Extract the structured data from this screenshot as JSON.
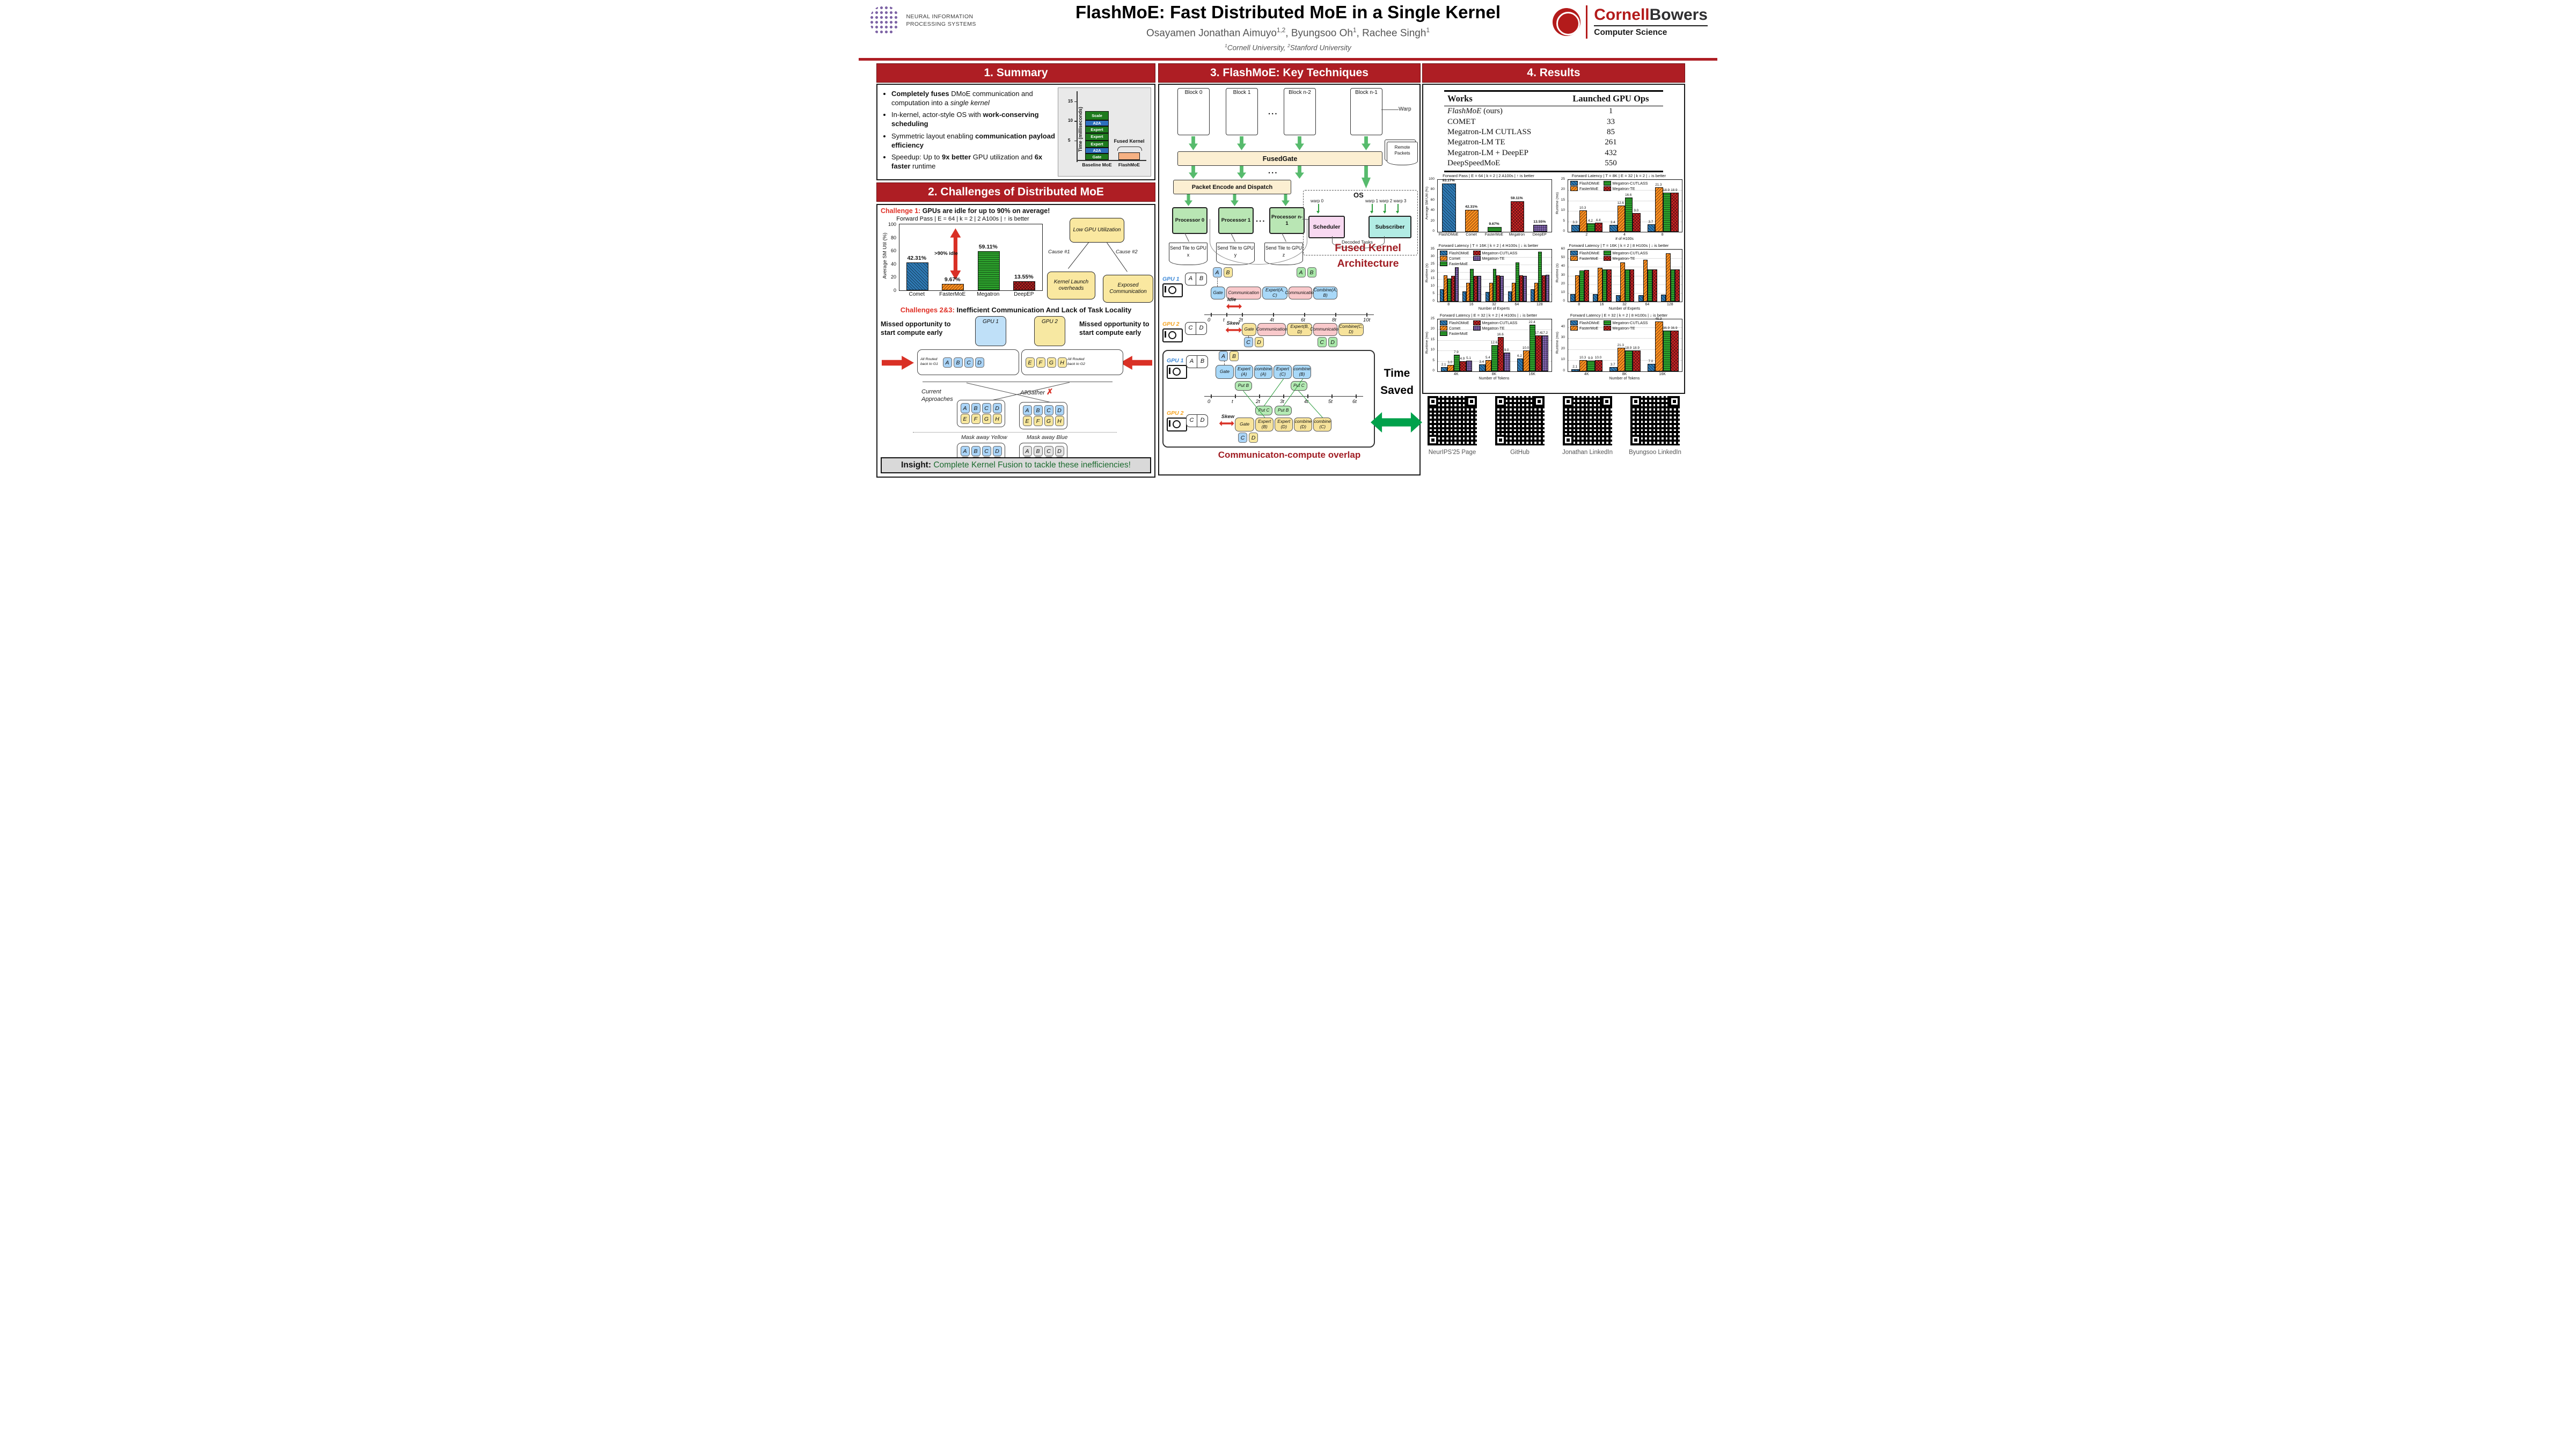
{
  "header": {
    "title": "FlashMoE: Fast Distributed MoE in a Single Kernel",
    "authors": [
      {
        "name": "Osayamen Jonathan Aimuyo",
        "sup": "1,2",
        "sep": ", "
      },
      {
        "name": "Byungsoo Oh",
        "sup": "1",
        "sep": ", "
      },
      {
        "name": "Rachee Singh",
        "sup": "1",
        "sep": ""
      }
    ],
    "affiliations": [
      {
        "sup": "1",
        "text": "Cornell University, "
      },
      {
        "sup": "2",
        "text": "Stanford University"
      }
    ],
    "neurips_lines": [
      "NEURAL INFORMATION",
      "PROCESSING SYSTEMS"
    ],
    "cornell": {
      "red": "Cornell",
      "black": "Bowers",
      "sub": "Computer Science"
    }
  },
  "sections": {
    "s1": "1. Summary",
    "s2": "2. Challenges of Distributed MoE",
    "s3": "3. FlashMoE: Key Techniques",
    "s4": "4. Results"
  },
  "summary": {
    "bullets": [
      [
        {
          "t": "Completely fuses",
          "b": 1
        },
        {
          "t": " DMoE communication and computation into a "
        },
        {
          "t": "single kernel",
          "i": 1
        }
      ],
      [
        {
          "t": "In-kernel, actor-style OS with "
        },
        {
          "t": "work-conserving scheduling",
          "b": 1
        }
      ],
      [
        {
          "t": "Symmetric layout enabling "
        },
        {
          "t": "communication payload efficiency",
          "b": 1
        }
      ],
      [
        {
          "t": "Speedup: Up to "
        },
        {
          "t": "9x better",
          "b": 1
        },
        {
          "t": " GPU utilization and "
        },
        {
          "t": "6x faster",
          "b": 1
        },
        {
          "t": " runtime"
        }
      ]
    ]
  },
  "challenges": {
    "ch1_red": "Challenge 1:",
    "ch1_black": " GPUs are idle for up to 90% on average!",
    "causes": {
      "low": "Low GPU Utilization",
      "c1": "Cause #1",
      "c2": "Cause #2",
      "kernel": "Kernel Launch overheads",
      "exposed": "Exposed Communication"
    },
    "ch23_red": "Challenges 2&3: ",
    "ch23_black": "Inefficient Communication And Lack of Task Locality",
    "missed_left": "Missed opportunity to start compute early",
    "missed_right": "Missed opportunity to start compute early",
    "gpu1": "GPU 1",
    "gpu2": "GPU 2",
    "routed1": "All Routed back to G1",
    "routed2": "All Routed back to G2",
    "tokens_blue": [
      "A",
      "B",
      "C",
      "D"
    ],
    "tokens_yellow": [
      "E",
      "F",
      "G",
      "H"
    ],
    "current": "Current Approaches",
    "allgather": "AllGather",
    "cross": "✗",
    "mask_yellow": "Mask away Yellow",
    "mask_blue": "Mask away Blue",
    "insight_label": "Insight: ",
    "insight_text": "Complete Kernel Fusion to tackle these inefficiencies!"
  },
  "tech": {
    "blocks": [
      "Block 0",
      "Block 1",
      "Block n-2",
      "Block n-1"
    ],
    "dots": "...",
    "warp_label": "Warp",
    "fusedgate": "FusedGate",
    "packet": "Packet Encode and Dispatch",
    "os": "OS",
    "warp0": "warp 0",
    "warps123": "warp 1 warp 2 warp 3",
    "scheduler": "Scheduler",
    "subscriber": "Subscriber",
    "decoded": "Decoded Tasks",
    "remote": "Remote Packets",
    "processors": [
      "Processor 0",
      "Processor 1",
      "Processor n-1"
    ],
    "send_tiles": [
      "Send Tile to GPU x",
      "Send Tile to GPU y",
      "Send Tile to GPU z"
    ],
    "arch_caption": "Fused Kernel Architecture",
    "time_saved": "Time Saved",
    "overlap_caption": "Communicaton-compute overlap"
  },
  "timelines": {
    "t1": {
      "gpu1": "GPU 1",
      "gpu2": "GPU 2",
      "idle": "Idle",
      "skew": "Skew",
      "xmax": 10,
      "axis": [
        {
          "l": "0",
          "x": 0
        },
        {
          "l": "t",
          "x": 1
        },
        {
          "l": "2t",
          "x": 2
        },
        {
          "l": "4t",
          "x": 4
        },
        {
          "l": "6t",
          "x": 6
        },
        {
          "l": "8t",
          "x": 8
        },
        {
          "l": "10t",
          "x": 10
        }
      ],
      "g1_tokens": [
        "A",
        "B"
      ],
      "g2_tokens": [
        "C",
        "D"
      ],
      "g1_chips": [
        {
          "t": "A",
          "c": "blue"
        },
        {
          "t": "B",
          "c": "yellow"
        }
      ],
      "g1_out": [
        {
          "t": "A",
          "c": "green"
        },
        {
          "t": "B",
          "c": "green"
        }
      ],
      "g2_chips": [
        {
          "t": "C",
          "c": "blue"
        },
        {
          "t": "D",
          "c": "yellow"
        }
      ],
      "g2_out": [
        {
          "t": "C",
          "c": "green"
        },
        {
          "t": "D",
          "c": "green"
        }
      ],
      "g1_seq": [
        {
          "l": "Gate",
          "c": "blue",
          "x": 0,
          "w": 1
        },
        {
          "l": "Communication",
          "c": "pink",
          "x": 1,
          "w": 2.3
        },
        {
          "l": "Expert(A, C)",
          "c": "blue",
          "x": 3.3,
          "w": 1.7
        },
        {
          "l": "Communication",
          "c": "pink",
          "x": 5,
          "w": 1.6
        },
        {
          "l": "Combine(A, B)",
          "c": "blue",
          "x": 6.6,
          "w": 1.6
        }
      ],
      "g2_seq": [
        {
          "l": "Gate",
          "c": "yellow",
          "x": 2,
          "w": 1
        },
        {
          "l": "Communication",
          "c": "pink",
          "x": 3,
          "w": 1.9
        },
        {
          "l": "Expert(B, D)",
          "c": "yellow",
          "x": 4.9,
          "w": 1.7
        },
        {
          "l": "Communication",
          "c": "pink",
          "x": 6.6,
          "w": 1.6
        },
        {
          "l": "Combine(C, D)",
          "c": "yellow",
          "x": 8.2,
          "w": 1.7
        }
      ]
    },
    "t2": {
      "gpu1": "GPU 1",
      "gpu2": "GPU 2",
      "skew": "Skew",
      "xmax": 6,
      "axis": [
        {
          "l": "0",
          "x": 0
        },
        {
          "l": "t",
          "x": 1
        },
        {
          "l": "2t",
          "x": 2
        },
        {
          "l": "3t",
          "x": 3
        },
        {
          "l": "4t",
          "x": 4
        },
        {
          "l": "5t",
          "x": 5
        },
        {
          "l": "6t",
          "x": 6
        }
      ],
      "g1_tokens": [
        "A",
        "B"
      ],
      "g2_tokens": [
        "C",
        "D"
      ],
      "g1_chips": [
        {
          "t": "A",
          "c": "blue"
        },
        {
          "t": "B",
          "c": "yellow"
        }
      ],
      "g2_chips": [
        {
          "t": "C",
          "c": "blue"
        },
        {
          "t": "D",
          "c": "yellow"
        }
      ],
      "g1_seq": [
        {
          "l": "Gate",
          "c": "blue",
          "x": 0.2,
          "w": 0.8
        },
        {
          "l": "Expert (A)",
          "c": "blue",
          "x": 1.0,
          "w": 0.8
        },
        {
          "l": "combine (A)",
          "c": "blue",
          "x": 1.8,
          "w": 0.8
        },
        {
          "l": "Expert (C)",
          "c": "blue",
          "x": 2.6,
          "w": 0.8
        },
        {
          "l": "combine (B)",
          "c": "blue",
          "x": 3.4,
          "w": 0.8
        }
      ],
      "g1_puts": [
        {
          "l": "Put B",
          "x": 1.0,
          "w": 0.75
        },
        {
          "l": "Put C",
          "x": 3.3,
          "w": 0.75
        }
      ],
      "g2_puts": [
        {
          "l": "Put C",
          "x": 1.85,
          "w": 0.75
        },
        {
          "l": "Put B",
          "x": 2.65,
          "w": 0.75
        }
      ],
      "g2_seq": [
        {
          "l": "Gate",
          "c": "yellow",
          "x": 1.0,
          "w": 0.85
        },
        {
          "l": "Expert (B)",
          "c": "yellow",
          "x": 1.85,
          "w": 0.8
        },
        {
          "l": "Expert (D)",
          "c": "yellow",
          "x": 2.65,
          "w": 0.8
        },
        {
          "l": "combine (D)",
          "c": "yellow",
          "x": 3.45,
          "w": 0.8
        },
        {
          "l": "combine (C)",
          "c": "yellow",
          "x": 4.25,
          "w": 0.8
        }
      ]
    }
  },
  "results": {
    "table": {
      "headers": [
        "Works",
        "Launched GPU Ops"
      ],
      "rows": [
        {
          "work_i": "FlashMoE",
          "work": " (ours)",
          "ops": "1"
        },
        {
          "work_i": "",
          "work": "COMET",
          "ops": "33"
        },
        {
          "work_i": "",
          "work": "Megatron-LM CUTLASS",
          "ops": "85"
        },
        {
          "work_i": "",
          "work": "Megatron-LM TE",
          "ops": "261"
        },
        {
          "work_i": "",
          "work": "Megatron-LM + DeepEP",
          "ops": "432"
        },
        {
          "work_i": "",
          "work": "DeepSpeedMoE",
          "ops": "550"
        }
      ]
    }
  },
  "qr": {
    "items": [
      {
        "label": "NeurIPS'25 Page"
      },
      {
        "label": "GitHub"
      },
      {
        "label": "Jonathan LinkedIn"
      },
      {
        "label": "Byungsoo LinkedIn"
      }
    ]
  },
  "chart_data": [
    {
      "id": "summary_inset",
      "type": "stacked-bar",
      "ylabel": "Time (milliseconds)",
      "yticks": [
        5,
        10,
        15
      ],
      "ymax": 17,
      "fused_label": "Fused Kernel",
      "bars": [
        {
          "label": "Baseline MoE",
          "segments": [
            {
              "name": "Gate",
              "h": 1.7,
              "color": "#1e7a1e"
            },
            {
              "name": "A2A",
              "h": 1.5,
              "color": "#2e6fbd"
            },
            {
              "name": "Expert",
              "h": 1.8,
              "color": "#1e7a1e"
            },
            {
              "name": "Expert",
              "h": 1.8,
              "color": "#1e7a1e"
            },
            {
              "name": "Expert",
              "h": 1.8,
              "color": "#1e7a1e"
            },
            {
              "name": "A2A",
              "h": 1.5,
              "color": "#2e6fbd"
            },
            {
              "name": "Scale",
              "h": 2.4,
              "color": "#1e7a1e"
            }
          ]
        },
        {
          "label": "FlashMoE",
          "segments": [
            {
              "name": "",
              "h": 1.9,
              "color": "#f6b183"
            }
          ]
        }
      ]
    },
    {
      "id": "challenge_util",
      "type": "bar",
      "title": "Forward Pass | E = 64 | k = 2 | 2 A100s |  ↑  is better",
      "ylabel": "Average SM Util (%)",
      "ymax": 100,
      "yticks": [
        0,
        20,
        40,
        60,
        80,
        100
      ],
      "categories": [
        "Comet",
        "FasterMoE",
        "Megatron",
        "DeepEP"
      ],
      "values": [
        42.31,
        9.67,
        59.11,
        13.55
      ],
      "labels": [
        "42.31%",
        "9.67%",
        "59.11%",
        "13.55%"
      ],
      "colors": [
        "#2f7bb6",
        "#ff8f1f",
        "#2ca02c",
        "#b22222"
      ],
      "hatches": [
        "d",
        "b",
        "h",
        "x"
      ],
      "annotation": ">90% idle"
    },
    {
      "id": "results_util",
      "type": "bar",
      "title": "Forward Pass | E = 64 | k = 2 | 2 A100s |  ↑  is better",
      "ylabel": "Average SM Util (%)",
      "ymax": 100,
      "yticks": [
        0,
        20,
        40,
        60,
        80,
        100
      ],
      "categories": [
        "FlashDMoE",
        "Comet",
        "FasterMoE",
        "Megatron",
        "DeepEP"
      ],
      "values": [
        93.17,
        42.31,
        9.67,
        59.11,
        13.55
      ],
      "labels": [
        "93.17%",
        "42.31%",
        "9.67%",
        "59.11%",
        "13.55%"
      ],
      "colors": [
        "#2f7bb6",
        "#ff8f1f",
        "#2ca02c",
        "#cc2526",
        "#8f6fc0"
      ],
      "hatches": [
        "d",
        "b",
        "h",
        "x",
        "g"
      ]
    },
    {
      "id": "lat_gpus",
      "type": "grouped-bar",
      "title": "Forward Latency | T = 8K | E = 32 | k = 2 |  ↓  is better",
      "xlabel": "# of H100s",
      "ylabel": "Runtime (ms)",
      "ymax": 25,
      "yticks": [
        0,
        5,
        10,
        15,
        20,
        25
      ],
      "grid": true,
      "show_values": true,
      "categories": [
        "2",
        "4",
        "8"
      ],
      "series": [
        {
          "name": "FlashDMoE",
          "color": "#2f7bb6",
          "hatch": "d",
          "values": [
            3.3,
            3.4,
            3.7
          ]
        },
        {
          "name": "FasterMoE",
          "color": "#ff8f1f",
          "hatch": "b",
          "values": [
            10.3,
            12.6,
            21.3
          ]
        },
        {
          "name": "Megatron-CUTLASS",
          "color": "#2ca02c",
          "hatch": "h",
          "values": [
            4.2,
            16.6,
            18.9
          ]
        },
        {
          "name": "Megatron-TE",
          "color": "#cc2526",
          "hatch": "x",
          "values": [
            4.4,
            9.0,
            18.9
          ]
        }
      ]
    },
    {
      "id": "lat_experts_4h",
      "type": "grouped-bar",
      "title": "Forward Latency | T = 16K | k = 2 | 4 H100s |  ↓  is better",
      "xlabel": "Number of Experts",
      "ylabel": "Runtime (s)",
      "ymax": 35,
      "yticks": [
        0,
        5,
        10,
        15,
        20,
        25,
        30,
        35
      ],
      "grid": true,
      "show_values": false,
      "categories": [
        "8",
        "16",
        "32",
        "64",
        "128"
      ],
      "series": [
        {
          "name": "FlashDMoE",
          "color": "#2f7bb6",
          "hatch": "d",
          "values": [
            8.2,
            6.9,
            6.4,
            6.9,
            8.2
          ]
        },
        {
          "name": "Comet",
          "color": "#ff8f1f",
          "hatch": "b",
          "values": [
            17.8,
            12.6,
            12.6,
            12.7,
            12.8
          ]
        },
        {
          "name": "FasterMoE",
          "color": "#2ca02c",
          "hatch": "h",
          "values": [
            15.6,
            21.9,
            22.1,
            26.4,
            33.4
          ]
        },
        {
          "name": "Megatron-CUTLASS",
          "color": "#cc2526",
          "hatch": "x",
          "values": [
            17.4,
            17.4,
            17.6,
            17.7,
            17.7
          ]
        },
        {
          "name": "Megatron-TE",
          "color": "#8f6fc0",
          "hatch": "g",
          "values": [
            23.0,
            17.3,
            17.5,
            17.5,
            17.9
          ]
        }
      ]
    },
    {
      "id": "lat_experts_8h",
      "type": "grouped-bar",
      "title": "Forward Latency | T = 16K | k = 2 | 8 H100s |  ↓  is better",
      "xlabel": "Number of Experts",
      "ylabel": "Runtime (s)",
      "ymax": 60,
      "yticks": [
        0,
        10,
        20,
        30,
        40,
        50,
        60
      ],
      "grid": true,
      "show_values": false,
      "categories": [
        "8",
        "16",
        "32",
        "64",
        "128"
      ],
      "series": [
        {
          "name": "FlashDMoE",
          "color": "#2f7bb6",
          "hatch": "d",
          "values": [
            8.6,
            8.6,
            7.2,
            7.2,
            8.3
          ]
        },
        {
          "name": "FasterMoE",
          "color": "#ff8f1f",
          "hatch": "b",
          "values": [
            30.6,
            38.9,
            44.9,
            48.3,
            55.4
          ]
        },
        {
          "name": "Megatron-CUTLASS",
          "color": "#2ca02c",
          "hatch": "h",
          "values": [
            36.1,
            37.0,
            36.9,
            37.2,
            37.1
          ]
        },
        {
          "name": "Megatron-TE",
          "color": "#cc2526",
          "hatch": "x",
          "values": [
            36.6,
            36.9,
            36.9,
            36.9,
            37.1
          ]
        }
      ]
    },
    {
      "id": "lat_tokens_4h",
      "type": "grouped-bar",
      "title": "Forward Latency | E = 32 | k = 2 | 4 H100s |  ↓  is better",
      "xlabel": "Number of Tokens",
      "ylabel": "Runtime (ms)",
      "ymax": 25,
      "yticks": [
        0,
        5,
        10,
        15,
        20,
        25
      ],
      "grid": true,
      "show_values": true,
      "categories": [
        "4K",
        "8K",
        "16K"
      ],
      "series": [
        {
          "name": "FlashDMoE",
          "color": "#2f7bb6",
          "hatch": "d",
          "values": [
            2.1,
            3.4,
            6.2
          ]
        },
        {
          "name": "Comet",
          "color": "#ff8f1f",
          "hatch": "b",
          "values": [
            3.0,
            5.4,
            10.0
          ]
        },
        {
          "name": "FasterMoE",
          "color": "#2ca02c",
          "hatch": "h",
          "values": [
            7.9,
            12.6,
            22.4
          ]
        },
        {
          "name": "Megatron-CUTLASS",
          "color": "#cc2526",
          "hatch": "x",
          "values": [
            4.9,
            16.6,
            17.4
          ]
        },
        {
          "name": "Megatron-TE",
          "color": "#8f6fc0",
          "hatch": "g",
          "values": [
            5.1,
            9.0,
            17.2
          ]
        }
      ]
    },
    {
      "id": "lat_tokens_8h",
      "type": "grouped-bar",
      "title": "Forward Latency | E = 32 | k = 2 | 8 H100s |  ↓  is better",
      "xlabel": "Number of Tokens",
      "ylabel": "Runtime (ms)",
      "ymax": 47,
      "yticks": [
        0,
        10,
        20,
        30,
        40
      ],
      "grid": true,
      "show_values": true,
      "categories": [
        "4K",
        "8K",
        "16K"
      ],
      "series": [
        {
          "name": "FlashDMoE",
          "color": "#2f7bb6",
          "hatch": "d",
          "values": [
            2.1,
            3.7,
            7.0
          ]
        },
        {
          "name": "FasterMoE",
          "color": "#ff8f1f",
          "hatch": "b",
          "values": [
            10.3,
            21.3,
            45.3
          ]
        },
        {
          "name": "Megatron-CUTLASS",
          "color": "#2ca02c",
          "hatch": "h",
          "values": [
            9.9,
            18.9,
            36.9
          ]
        },
        {
          "name": "Megatron-TE",
          "color": "#cc2526",
          "hatch": "x",
          "values": [
            10.0,
            18.9,
            36.9
          ]
        }
      ]
    }
  ]
}
